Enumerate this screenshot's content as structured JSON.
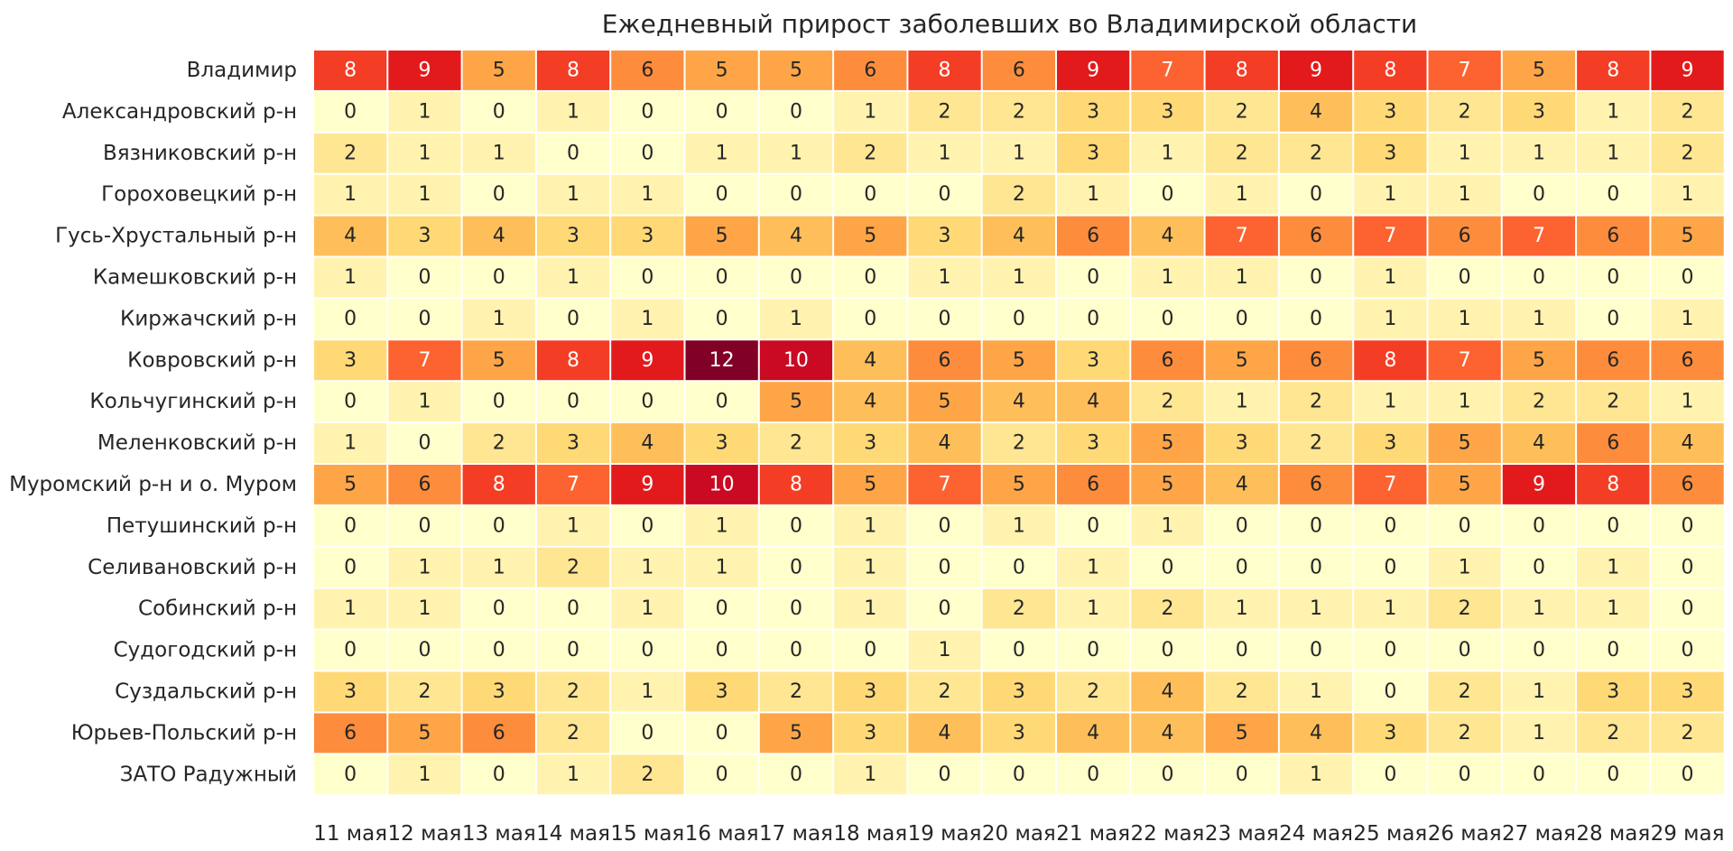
{
  "chart_data": {
    "type": "heatmap",
    "title": "Ежедневный прирост заболевших во Владимирской области",
    "rows": [
      "Владимир",
      "Александровский р-н",
      "Вязниковский р-н",
      "Гороховецкий р-н",
      "Гусь-Хрустальный р-н",
      "Камешковский р-н",
      "Киржачский р-н",
      "Ковровский р-н",
      "Кольчугинский р-н",
      "Меленковский р-н",
      "Муромский р-н и о. Муром",
      "Петушинский р-н",
      "Селивановский р-н",
      "Собинский р-н",
      "Судогодский р-н",
      "Суздальский р-н",
      "Юрьев-Польский р-н",
      "ЗАТО Радужный"
    ],
    "columns": [
      "11 мая",
      "12 мая",
      "13 мая",
      "14 мая",
      "15 мая",
      "16 мая",
      "17 мая",
      "18 мая",
      "19 мая",
      "20 мая",
      "21 мая",
      "22 мая",
      "23 мая",
      "24 мая",
      "25 мая",
      "26 мая",
      "27 мая",
      "28 мая",
      "29 мая"
    ],
    "values": [
      [
        8,
        9,
        5,
        8,
        6,
        5,
        5,
        6,
        8,
        6,
        9,
        7,
        8,
        9,
        8,
        7,
        5,
        8,
        9
      ],
      [
        0,
        1,
        0,
        1,
        0,
        0,
        0,
        1,
        2,
        2,
        3,
        3,
        2,
        4,
        3,
        2,
        3,
        1,
        2
      ],
      [
        2,
        1,
        1,
        0,
        0,
        1,
        1,
        2,
        1,
        1,
        3,
        1,
        2,
        2,
        3,
        1,
        1,
        1,
        2
      ],
      [
        1,
        1,
        0,
        1,
        1,
        0,
        0,
        0,
        0,
        2,
        1,
        0,
        1,
        0,
        1,
        1,
        0,
        0,
        1
      ],
      [
        4,
        3,
        4,
        3,
        3,
        5,
        4,
        5,
        3,
        4,
        6,
        4,
        7,
        6,
        7,
        6,
        7,
        6,
        5
      ],
      [
        1,
        0,
        0,
        1,
        0,
        0,
        0,
        0,
        1,
        1,
        0,
        1,
        1,
        0,
        1,
        0,
        0,
        0,
        0
      ],
      [
        0,
        0,
        1,
        0,
        1,
        0,
        1,
        0,
        0,
        0,
        0,
        0,
        0,
        0,
        1,
        1,
        1,
        0,
        1
      ],
      [
        3,
        7,
        5,
        8,
        9,
        12,
        10,
        4,
        6,
        5,
        3,
        6,
        5,
        6,
        8,
        7,
        5,
        6,
        6
      ],
      [
        0,
        1,
        0,
        0,
        0,
        0,
        5,
        4,
        5,
        4,
        4,
        2,
        1,
        2,
        1,
        1,
        2,
        2,
        1
      ],
      [
        1,
        0,
        2,
        3,
        4,
        3,
        2,
        3,
        4,
        2,
        3,
        5,
        3,
        2,
        3,
        5,
        4,
        6,
        4
      ],
      [
        5,
        6,
        8,
        7,
        9,
        10,
        8,
        5,
        7,
        5,
        6,
        5,
        4,
        6,
        7,
        5,
        9,
        8,
        6
      ],
      [
        0,
        0,
        0,
        1,
        0,
        1,
        0,
        1,
        0,
        1,
        0,
        1,
        0,
        0,
        0,
        0,
        0,
        0,
        0
      ],
      [
        0,
        1,
        1,
        2,
        1,
        1,
        0,
        1,
        0,
        0,
        1,
        0,
        0,
        0,
        0,
        1,
        0,
        1,
        0
      ],
      [
        1,
        1,
        0,
        0,
        1,
        0,
        0,
        1,
        0,
        2,
        1,
        2,
        1,
        1,
        1,
        2,
        1,
        1,
        0
      ],
      [
        0,
        0,
        0,
        0,
        0,
        0,
        0,
        0,
        1,
        0,
        0,
        0,
        0,
        0,
        0,
        0,
        0,
        0,
        0
      ],
      [
        3,
        2,
        3,
        2,
        1,
        3,
        2,
        3,
        2,
        3,
        2,
        4,
        2,
        1,
        0,
        2,
        1,
        3,
        3
      ],
      [
        6,
        5,
        6,
        2,
        0,
        0,
        5,
        3,
        4,
        3,
        4,
        4,
        5,
        4,
        3,
        2,
        1,
        2,
        2
      ],
      [
        0,
        1,
        0,
        1,
        2,
        0,
        0,
        1,
        0,
        0,
        0,
        0,
        0,
        1,
        0,
        0,
        0,
        0,
        0
      ]
    ],
    "colormap": [
      "#ffffcc",
      "#ffeda0",
      "#fed976",
      "#feb24c",
      "#fd8d3c",
      "#fc4e2a",
      "#e31a1c",
      "#bd0026",
      "#800026"
    ],
    "vmin": 0,
    "vmax": 12
  }
}
